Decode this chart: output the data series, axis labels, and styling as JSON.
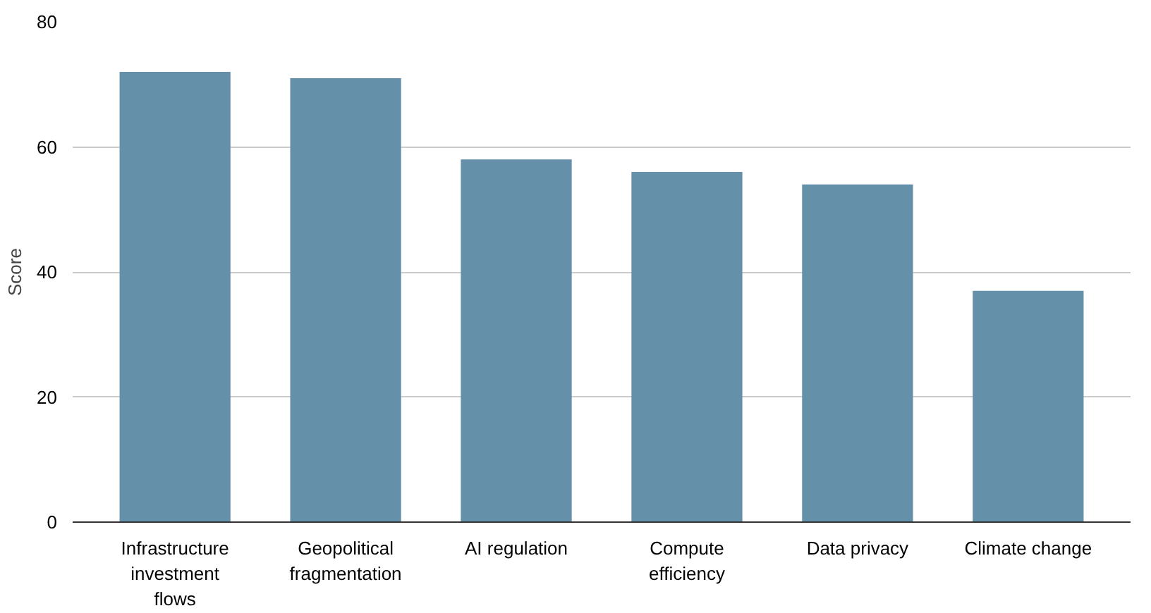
{
  "chart_data": {
    "type": "bar",
    "ylabel": "Score",
    "categories": [
      "Infrastructure investment flows",
      "Geopolitical fragmentation",
      "AI regulation",
      "Compute efficiency",
      "Data privacy",
      "Climate change"
    ],
    "values": [
      72,
      71,
      58,
      56,
      54,
      37
    ],
    "color": "#6590a9",
    "ylim": [
      0,
      80
    ],
    "yticks": [
      0,
      20,
      40,
      60,
      80
    ],
    "grid": "y"
  }
}
